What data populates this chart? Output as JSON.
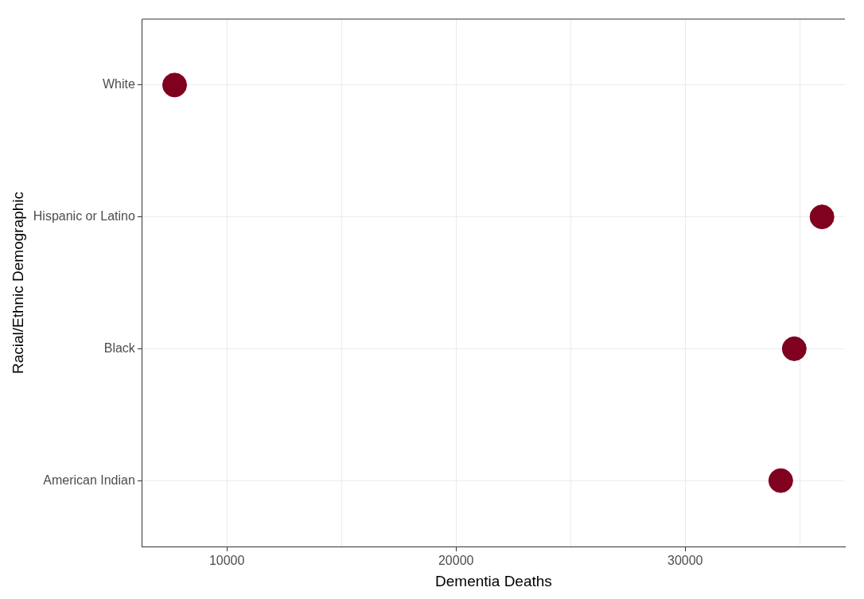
{
  "chart_data": {
    "type": "scatter",
    "orientation": "horizontal",
    "xlabel": "Dementia Deaths",
    "ylabel": "Racial/Ethnic Demographic",
    "categories": [
      "White",
      "Hispanic or Latino",
      "Black",
      "American Indian"
    ],
    "values": [
      7720,
      35970,
      34760,
      34170
    ],
    "color": "#800020",
    "marker": "circle",
    "xlim": [
      6310,
      36970
    ],
    "xticks": [
      10000,
      {
        "value": 15000,
        "label": null
      },
      20000,
      {
        "value": 25000,
        "label": null
      },
      30000,
      {
        "value": 35000,
        "label": null
      }
    ],
    "grid": true,
    "legend": false
  }
}
